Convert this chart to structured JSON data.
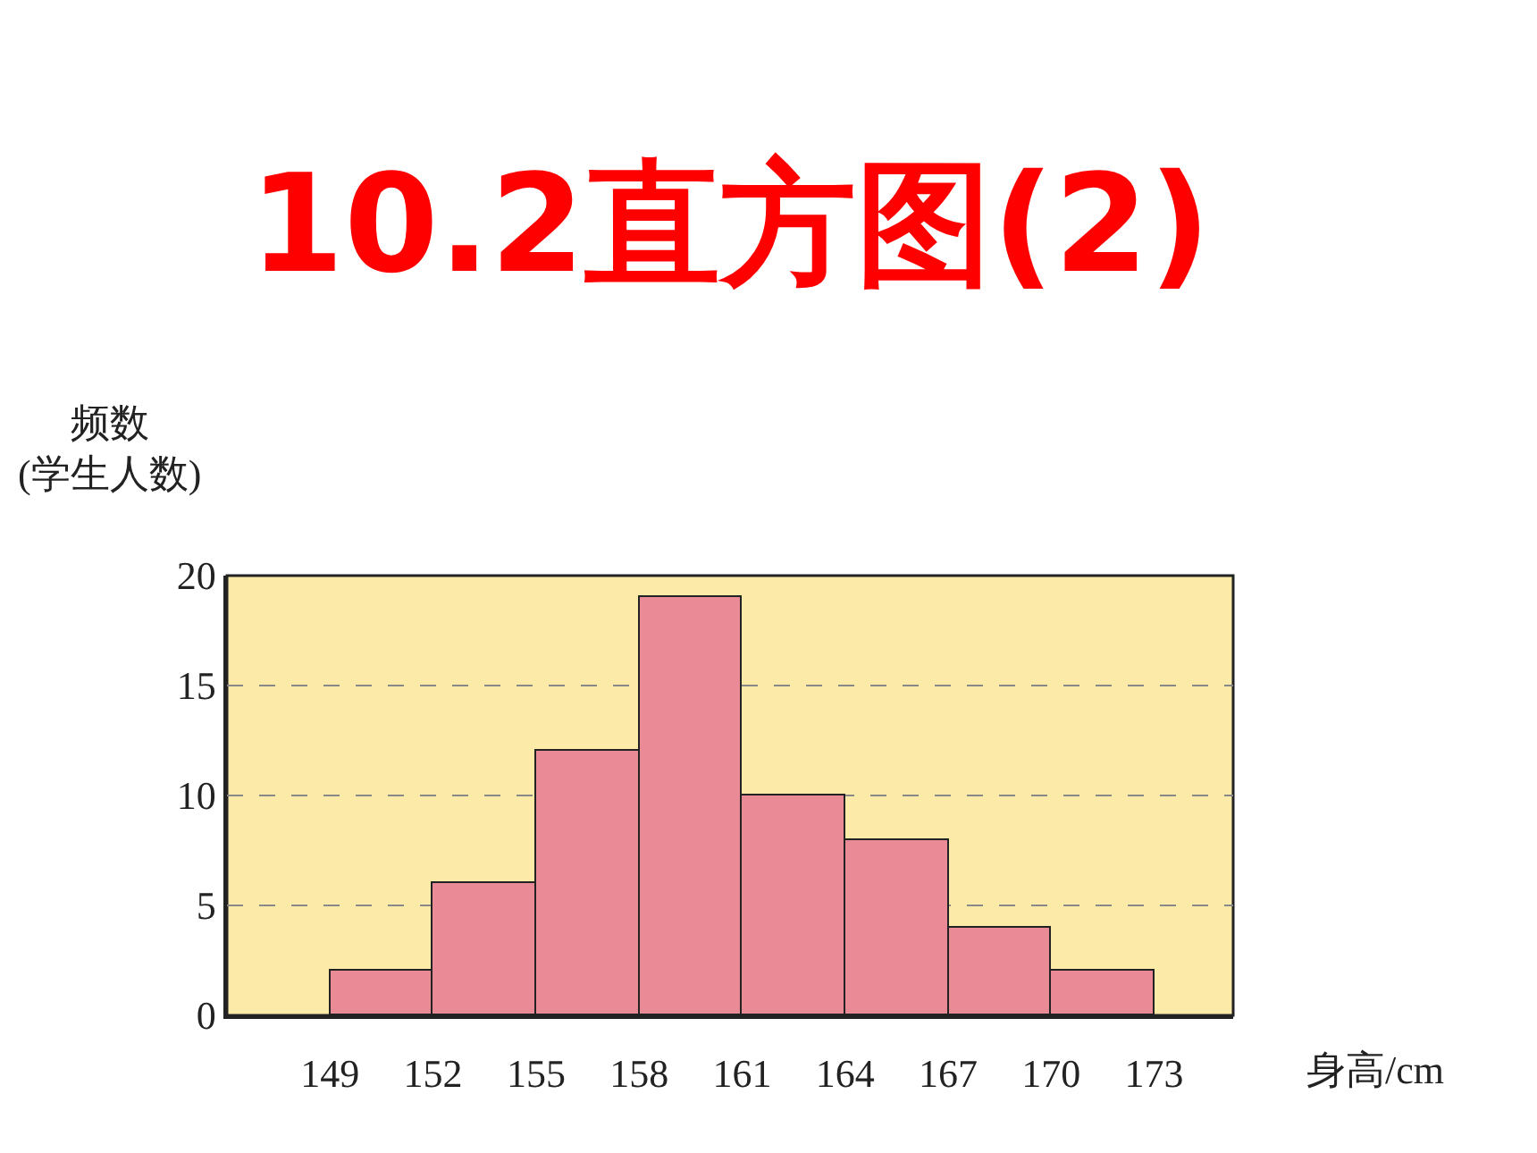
{
  "chart_data": {
    "type": "histogram",
    "title": "10.2直方图(2)",
    "xlabel": "身高/cm",
    "ylabel": "频数\n(学生人数)",
    "bins": [
      149,
      152,
      155,
      158,
      161,
      164,
      167,
      170,
      173
    ],
    "values": [
      2,
      6,
      12,
      19,
      10,
      8,
      4,
      2
    ],
    "color": "#ea8a96",
    "xlim": [
      146,
      175.3
    ],
    "xticks": [
      149,
      152,
      155,
      158,
      161,
      164,
      167,
      170,
      173
    ],
    "ylim": [
      0,
      20
    ],
    "yticks": [
      0,
      5,
      10,
      15,
      20
    ],
    "grid": "y",
    "legend": false
  }
}
